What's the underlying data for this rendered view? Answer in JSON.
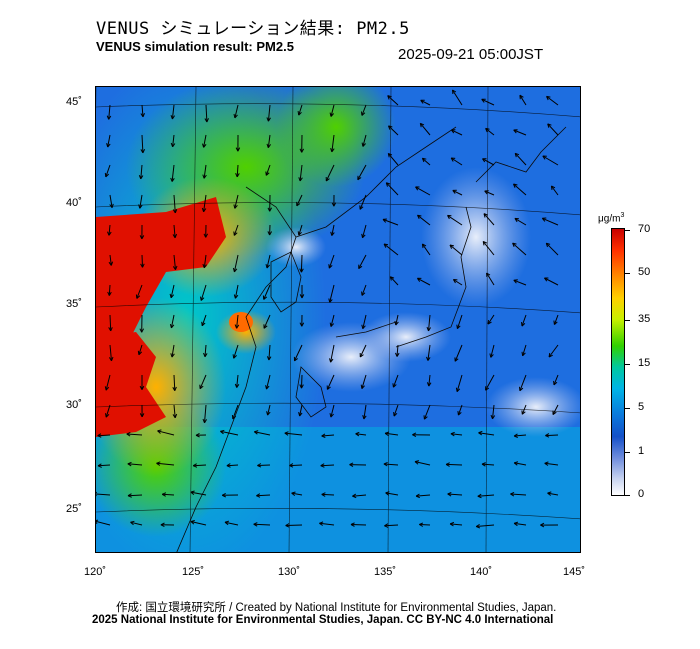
{
  "header": {
    "title_jp": "VENUS シミュレーション結果: PM2.5",
    "title_en": "VENUS simulation result: PM2.5",
    "timestamp": "2025-09-21 05:00JST"
  },
  "map": {
    "lat_ticks": [
      "45˚",
      "40˚",
      "35˚",
      "30˚",
      "25˚"
    ],
    "lon_ticks": [
      "120˚",
      "125˚",
      "130˚",
      "135˚",
      "140˚",
      "145˚"
    ],
    "region": "East Asia / Japan",
    "layer": "PM2.5 concentration with wind vectors"
  },
  "colorbar": {
    "unit_base": "μg/m",
    "unit_exp": "3",
    "labels": [
      "70",
      "50",
      "35",
      "15",
      "5",
      "1",
      "0"
    ],
    "colors": [
      "#c80000",
      "#ff8c00",
      "#ffd000",
      "#30d000",
      "#00b4e6",
      "#1450c8",
      "#ffffff"
    ]
  },
  "footer": {
    "credit_line": "作成: 国立環境研究所 / Created by National Institute for Environmental Studies, Japan.",
    "copyright_line": "2025 National Institute for Environmental Studies, Japan. CC BY-NC 4.0 International"
  }
}
